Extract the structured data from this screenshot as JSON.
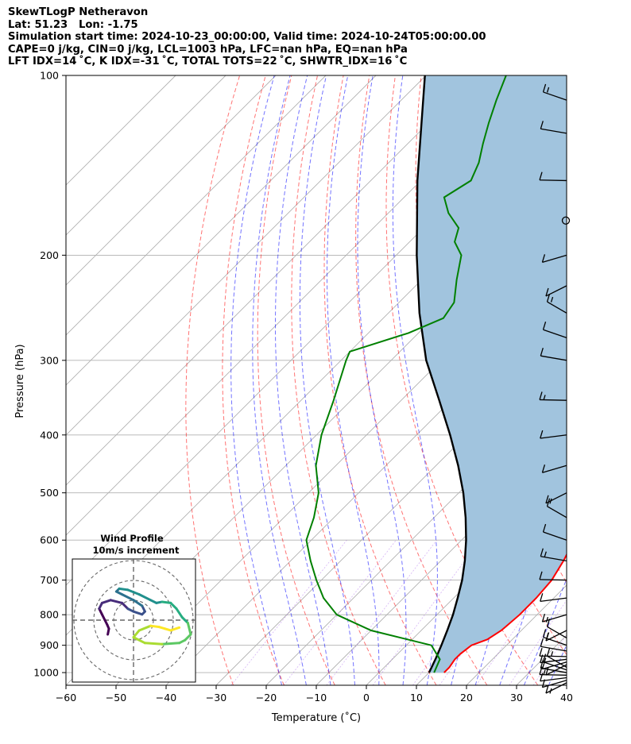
{
  "header": {
    "line1": "SkewTLogP Netheravon",
    "line2": "Lat: 51.23   Lon: -1.75",
    "line3": "Simulation start time: 2024-10-23_00:00:00, Valid time: 2024-10-24T05:00:00.00",
    "line4": "CAPE=0 j/kg, CIN=0 j/kg, LCL=1003 hPa, LFC=nan hPa, EQ=nan hPa",
    "line5": "LFT IDX=14 ˚C, K IDX=-31 ˚C, TOTAL TOTS=22 ˚C, SHWTR_IDX=16 ˚C"
  },
  "chart_data": {
    "type": "line",
    "subtype": "skew-T log-P diagram",
    "xlabel": "Temperature (˚C)",
    "ylabel": "Pressure (hPa)",
    "xlim": [
      -60,
      40
    ],
    "ylim": [
      1050,
      100
    ],
    "yscale": "log",
    "grid": true,
    "x_ticks": [
      "−60",
      "−50",
      "−40",
      "−30",
      "−20",
      "−10",
      "0",
      "10",
      "20",
      "30",
      "40"
    ],
    "y_ticks": [
      "1000",
      "900",
      "800",
      "700",
      "600",
      "500",
      "400",
      "300",
      "200",
      "100"
    ],
    "series": [
      {
        "role": "temperature",
        "color": "#ff0000",
        "points": [
          [
            1000,
            13
          ],
          [
            980,
            13
          ],
          [
            950,
            12.5
          ],
          [
            930,
            12.5
          ],
          [
            900,
            13
          ],
          [
            880,
            15
          ],
          [
            850,
            16
          ],
          [
            800,
            16.5
          ],
          [
            750,
            16.5
          ],
          [
            700,
            16
          ],
          [
            650,
            14.5
          ],
          [
            600,
            12.5
          ],
          [
            550,
            8.5
          ],
          [
            500,
            4
          ],
          [
            450,
            -1
          ],
          [
            420,
            -4
          ],
          [
            400,
            -6
          ],
          [
            380,
            -9.5
          ],
          [
            350,
            -13
          ],
          [
            330,
            -16.5
          ],
          [
            310,
            -19
          ],
          [
            290,
            -22
          ],
          [
            270,
            -25.5
          ],
          [
            250,
            -29
          ],
          [
            230,
            -34
          ],
          [
            210,
            -40
          ],
          [
            200,
            -43
          ],
          [
            190,
            -45.5
          ],
          [
            180,
            -45
          ],
          [
            170,
            -44
          ],
          [
            160,
            -44
          ],
          [
            150,
            -44.5
          ],
          [
            140,
            -45
          ],
          [
            130,
            -46
          ],
          [
            120,
            -48
          ],
          [
            110,
            -51
          ],
          [
            100,
            -54
          ]
        ]
      },
      {
        "role": "dewpoint",
        "color": "#008000",
        "points": [
          [
            1000,
            11
          ],
          [
            950,
            9.5
          ],
          [
            900,
            5
          ],
          [
            850,
            -10
          ],
          [
            800,
            -20
          ],
          [
            750,
            -26
          ],
          [
            700,
            -31
          ],
          [
            650,
            -36
          ],
          [
            600,
            -41
          ],
          [
            550,
            -44
          ],
          [
            500,
            -48
          ],
          [
            450,
            -54
          ],
          [
            400,
            -59
          ],
          [
            350,
            -63.5
          ],
          [
            300,
            -69
          ],
          [
            290,
            -70
          ],
          [
            270,
            -62
          ],
          [
            255,
            -58
          ],
          [
            240,
            -59
          ],
          [
            220,
            -63
          ],
          [
            200,
            -67
          ],
          [
            190,
            -71
          ],
          [
            180,
            -73
          ],
          [
            170,
            -78
          ],
          [
            160,
            -82
          ],
          [
            150,
            -80
          ],
          [
            140,
            -82
          ],
          [
            130,
            -85
          ],
          [
            120,
            -88
          ],
          [
            110,
            -91
          ],
          [
            100,
            -94
          ]
        ]
      },
      {
        "role": "parcel profile",
        "color": "#000000",
        "points": [
          [
            1000,
            10
          ],
          [
            950,
            8.6
          ],
          [
            900,
            7.0
          ],
          [
            850,
            5.2
          ],
          [
            800,
            3.2
          ],
          [
            750,
            0.8
          ],
          [
            700,
            -1.9
          ],
          [
            650,
            -5.2
          ],
          [
            600,
            -9.1
          ],
          [
            550,
            -13.7
          ],
          [
            500,
            -19.1
          ],
          [
            450,
            -25.6
          ],
          [
            400,
            -33.3
          ],
          [
            350,
            -42.4
          ],
          [
            300,
            -53.0
          ],
          [
            250,
            -63.8
          ],
          [
            200,
            -75.9
          ],
          [
            150,
            -90.7
          ],
          [
            100,
            -110.2
          ]
        ]
      }
    ],
    "shading": {
      "between": [
        "parcel profile",
        "temperature"
      ],
      "color": "#a1c4de"
    },
    "wind_barbs_pressures": [
      1040,
      1030,
      1020,
      1010,
      1000,
      990,
      980,
      970,
      960,
      950,
      940,
      920,
      900,
      875,
      850,
      800,
      750,
      700,
      650,
      600,
      550,
      500,
      450,
      400,
      350,
      300,
      275,
      250,
      225,
      200,
      175,
      150,
      125,
      110
    ],
    "inset": {
      "title_line1": "Wind Profile",
      "title_line2": "10m/s increment",
      "hodograph_points": [
        [
          -4.5,
          -2.5
        ],
        [
          -4.3,
          -1.5
        ],
        [
          -4.6,
          -0.8
        ],
        [
          -5,
          0
        ],
        [
          -5.5,
          1
        ],
        [
          -6,
          2
        ],
        [
          -5.5,
          3
        ],
        [
          -4,
          3.5
        ],
        [
          -2,
          3
        ],
        [
          -1,
          2
        ],
        [
          0,
          1.5
        ],
        [
          1.5,
          1
        ],
        [
          2,
          1.5
        ],
        [
          1.5,
          2.5
        ],
        [
          0,
          3.5
        ],
        [
          -2,
          4.5
        ],
        [
          -3,
          5
        ],
        [
          -2.5,
          5.5
        ],
        [
          -1,
          5.3
        ],
        [
          1,
          4.5
        ],
        [
          3,
          3.5
        ],
        [
          4,
          3
        ],
        [
          5,
          3.2
        ],
        [
          6.5,
          3
        ],
        [
          7.5,
          2
        ],
        [
          8.5,
          0.5
        ],
        [
          9.5,
          -0.5
        ],
        [
          10,
          -2.5
        ],
        [
          9,
          -3.5
        ],
        [
          8,
          -4
        ],
        [
          5,
          -4.2
        ],
        [
          2,
          -4
        ],
        [
          0,
          -3
        ],
        [
          1,
          -1.8
        ],
        [
          3,
          -1
        ],
        [
          4.5,
          -1.2
        ],
        [
          5.5,
          -1.5
        ],
        [
          6.5,
          -1.8
        ],
        [
          8,
          -1.3
        ]
      ]
    }
  }
}
